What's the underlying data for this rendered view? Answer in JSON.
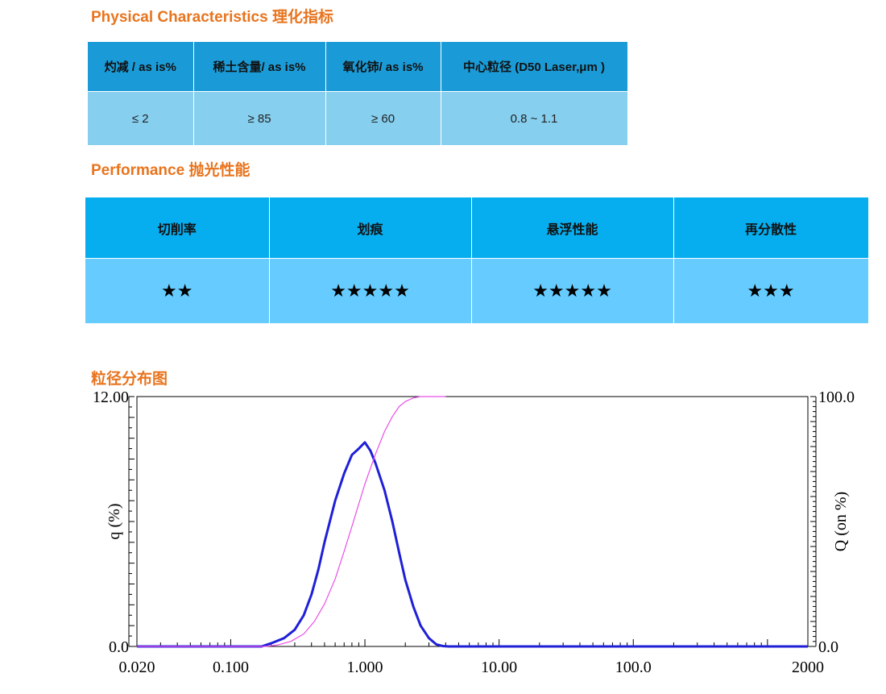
{
  "sections": {
    "physical": "Physical Characteristics 理化指标",
    "performance": "Performance 抛光性能",
    "psd": "粒径分布图"
  },
  "physical_table": {
    "headers": [
      "灼减 / as is%",
      "稀土含量/ as is%",
      "氧化铈/ as is%",
      "中心粒径 (D50 Laser,μm )"
    ],
    "values": [
      "≤ 2",
      "≥ 85",
      "≥ 60",
      "0.8 ~ 1.1"
    ]
  },
  "performance_table": {
    "headers": [
      "切削率",
      "划痕",
      "悬浮性能",
      "再分散性"
    ],
    "ratings": [
      "★★",
      "★★★★★",
      "★★★★★",
      "★★★"
    ],
    "rating_values": [
      2,
      5,
      5,
      3
    ]
  },
  "chart_data": {
    "type": "line",
    "x_scale": "log",
    "xlim": [
      0.02,
      2000
    ],
    "ylim": [
      0,
      12
    ],
    "y2lim": [
      0,
      100
    ],
    "xticks": [
      "0.020",
      "0.100",
      "1.000",
      "10.00",
      "100.0",
      "2000"
    ],
    "ylabel": "q (%)",
    "y2label": "Q (on %)",
    "ytick_top": "12.00",
    "ytick_bottom": "0.0",
    "y2tick_top": "100.0",
    "y2tick_bottom": "0.0",
    "series": [
      {
        "axis": "left",
        "color": "#1F1FD8",
        "x": [
          0.02,
          0.17,
          0.2,
          0.25,
          0.3,
          0.35,
          0.4,
          0.45,
          0.5,
          0.6,
          0.7,
          0.8,
          0.9,
          1.0,
          1.1,
          1.2,
          1.4,
          1.6,
          1.8,
          2.0,
          2.3,
          2.6,
          3.0,
          3.4,
          3.8,
          4.2,
          10,
          100,
          2000
        ],
        "y": [
          0,
          0,
          0.15,
          0.4,
          0.8,
          1.5,
          2.5,
          3.7,
          5.0,
          7.0,
          8.3,
          9.2,
          9.5,
          9.8,
          9.4,
          8.8,
          7.5,
          6.0,
          4.5,
          3.2,
          1.9,
          1.0,
          0.4,
          0.1,
          0.02,
          0,
          0,
          0,
          0
        ]
      },
      {
        "axis": "right",
        "color": "#E84FE8",
        "x": [
          0.02,
          0.18,
          0.22,
          0.28,
          0.35,
          0.42,
          0.5,
          0.6,
          0.7,
          0.8,
          0.9,
          1.0,
          1.2,
          1.4,
          1.6,
          1.8,
          2.0,
          2.3,
          2.6,
          3.0,
          3.5,
          4.0
        ],
        "y": [
          0,
          0,
          0.5,
          2,
          5,
          10,
          17,
          27,
          38,
          48,
          57,
          65,
          77,
          86,
          92,
          96,
          98,
          99.5,
          100,
          100,
          100,
          100
        ]
      }
    ]
  }
}
